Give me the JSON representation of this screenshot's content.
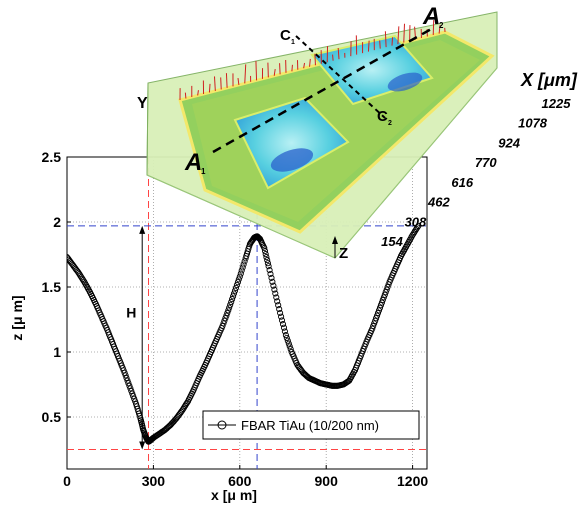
{
  "chart_data": {
    "type": "scatter",
    "xlabel": "x [μ m]",
    "ylabel": "z [μ m]",
    "xlim": [
      0,
      1250
    ],
    "ylim": [
      0.1,
      2.5
    ],
    "x_ticks": [
      0,
      300,
      600,
      900,
      1200
    ],
    "y_ticks": [
      0.5,
      1,
      1.5,
      2,
      2.5
    ],
    "grid": true,
    "legend_position": "lower-right",
    "series": [
      {
        "name": "FBAR  TiAu (10/200 nm)",
        "marker": "circle-open",
        "color": "#000000",
        "points": [
          [
            0,
            1.73
          ],
          [
            20,
            1.67
          ],
          [
            40,
            1.61
          ],
          [
            60,
            1.54
          ],
          [
            80,
            1.46
          ],
          [
            100,
            1.37
          ],
          [
            120,
            1.27
          ],
          [
            140,
            1.17
          ],
          [
            160,
            1.06
          ],
          [
            180,
            0.95
          ],
          [
            200,
            0.84
          ],
          [
            220,
            0.72
          ],
          [
            240,
            0.6
          ],
          [
            255,
            0.49
          ],
          [
            265,
            0.4
          ],
          [
            275,
            0.34
          ],
          [
            283,
            0.31
          ],
          [
            290,
            0.32
          ],
          [
            300,
            0.34
          ],
          [
            320,
            0.37
          ],
          [
            340,
            0.4
          ],
          [
            360,
            0.44
          ],
          [
            380,
            0.49
          ],
          [
            400,
            0.55
          ],
          [
            420,
            0.62
          ],
          [
            440,
            0.71
          ],
          [
            460,
            0.81
          ],
          [
            480,
            0.9
          ],
          [
            500,
            1.0
          ],
          [
            520,
            1.1
          ],
          [
            540,
            1.2
          ],
          [
            560,
            1.32
          ],
          [
            580,
            1.45
          ],
          [
            600,
            1.58
          ],
          [
            620,
            1.72
          ],
          [
            635,
            1.83
          ],
          [
            650,
            1.88
          ],
          [
            660,
            1.89
          ],
          [
            670,
            1.87
          ],
          [
            685,
            1.8
          ],
          [
            700,
            1.66
          ],
          [
            720,
            1.48
          ],
          [
            740,
            1.3
          ],
          [
            760,
            1.13
          ],
          [
            780,
            1.0
          ],
          [
            800,
            0.9
          ],
          [
            820,
            0.84
          ],
          [
            840,
            0.8
          ],
          [
            860,
            0.78
          ],
          [
            880,
            0.76
          ],
          [
            900,
            0.75
          ],
          [
            920,
            0.74
          ],
          [
            940,
            0.74
          ],
          [
            960,
            0.75
          ],
          [
            980,
            0.78
          ],
          [
            1000,
            0.86
          ],
          [
            1020,
            0.97
          ],
          [
            1040,
            1.08
          ],
          [
            1060,
            1.18
          ],
          [
            1080,
            1.3
          ],
          [
            1100,
            1.42
          ],
          [
            1120,
            1.54
          ],
          [
            1140,
            1.64
          ],
          [
            1160,
            1.74
          ],
          [
            1180,
            1.82
          ],
          [
            1200,
            1.9
          ],
          [
            1220,
            1.97
          ]
        ]
      }
    ],
    "reference_lines": {
      "vertical": [
        {
          "x": 283,
          "color": "#ff4444"
        },
        {
          "x": 660,
          "color": "#3344cc"
        }
      ],
      "horizontal": [
        {
          "y": 1.97,
          "color": "#3344cc"
        },
        {
          "y": 0.25,
          "color": "#ff4444"
        }
      ]
    },
    "annotations": [
      {
        "text": "H",
        "type": "height-arrow",
        "x": 400,
        "y_from": 0.25,
        "y_to": 1.97
      }
    ]
  },
  "inset": {
    "labels": {
      "a1": "A",
      "a1_sub": "1",
      "a2": "A",
      "a2_sub": "2",
      "c1": "C",
      "c1_sub": "1",
      "c2": "C",
      "c2_sub": "2",
      "y_axis": "Y",
      "z_axis": "Z",
      "x_axis": "X [μm]"
    },
    "x_ticks": [
      "1225",
      "1078",
      "924",
      "770",
      "616",
      "462",
      "308",
      "154"
    ],
    "colors": {
      "plate": "#c9e8a2",
      "surface": "#8fcf5a",
      "rim": "#e9ec5a",
      "cavity": "#48c8dc",
      "deep": "#2a6ad0",
      "edge": "#ff8080"
    }
  }
}
